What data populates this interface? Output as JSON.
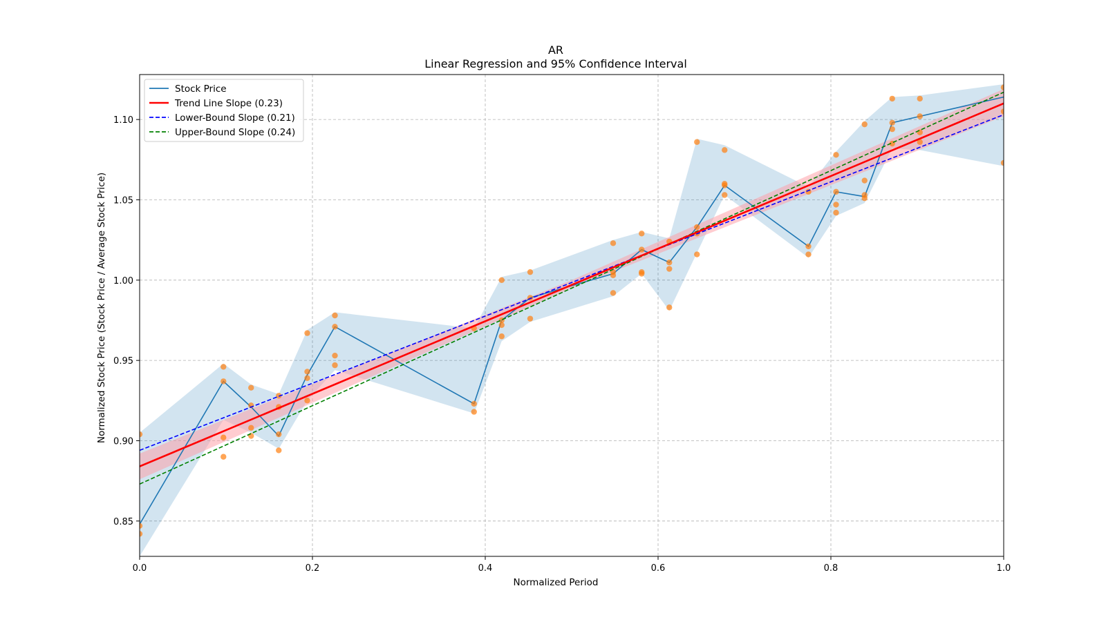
{
  "chart_data": {
    "type": "line",
    "title": "AR",
    "subtitle": "Linear Regression and 95% Confidence Interval",
    "xlabel": "Normalized Period",
    "ylabel": "Normalized Stock Price (Stock Price / Average Stock Price)",
    "xlim": [
      0.0,
      1.0
    ],
    "ylim": [
      0.828,
      1.128
    ],
    "xticks": [
      0.0,
      0.2,
      0.4,
      0.6,
      0.8,
      1.0
    ],
    "xtick_labels": [
      "0.0",
      "0.2",
      "0.4",
      "0.6",
      "0.8",
      "1.0"
    ],
    "yticks": [
      0.85,
      0.9,
      0.95,
      1.0,
      1.05,
      1.1
    ],
    "ytick_labels": [
      "0.85",
      "0.90",
      "0.95",
      "1.00",
      "1.05",
      "1.10"
    ],
    "grid": true,
    "legend_position": "top-left",
    "legend": [
      {
        "label": "Stock Price",
        "color": "#1f77b4",
        "style": "solid"
      },
      {
        "label": "Trend Line Slope (0.23)",
        "color": "#ff0000",
        "style": "solid"
      },
      {
        "label": "Lower-Bound Slope (0.21)",
        "color": "#0000ff",
        "style": "dashed"
      },
      {
        "label": "Upper-Bound Slope (0.24)",
        "color": "#008000",
        "style": "dashed"
      }
    ],
    "colors": {
      "stock": "#1f77b4",
      "stock_band": "#1f77b4",
      "scatter": "#ff7f0e",
      "trend": "#ff0000",
      "trend_band": "#ff9aa2",
      "lower": "#0000ff",
      "upper": "#008000",
      "grid": "#b0b0b0"
    },
    "stock_price": {
      "x": [
        0.0,
        0.097,
        0.129,
        0.161,
        0.194,
        0.226,
        0.387,
        0.419,
        0.452,
        0.548,
        0.581,
        0.613,
        0.645,
        0.677,
        0.774,
        0.806,
        0.839,
        0.871,
        0.903,
        1.0
      ],
      "y": [
        0.848,
        0.937,
        0.921,
        0.903,
        0.941,
        0.971,
        0.923,
        0.975,
        0.989,
        1.004,
        1.019,
        1.011,
        1.033,
        1.059,
        1.021,
        1.055,
        1.052,
        1.098,
        1.102,
        1.114
      ],
      "band_lower": [
        0.828,
        0.913,
        0.905,
        0.895,
        0.925,
        0.944,
        0.917,
        0.962,
        0.974,
        0.99,
        1.004,
        0.981,
        1.017,
        1.053,
        1.014,
        1.04,
        1.048,
        1.082,
        1.081,
        1.071
      ],
      "band_upper": [
        0.905,
        0.948,
        0.935,
        0.929,
        0.969,
        0.98,
        0.97,
        1.002,
        1.006,
        1.025,
        1.03,
        1.026,
        1.088,
        1.084,
        1.058,
        1.08,
        1.099,
        1.114,
        1.115,
        1.122
      ]
    },
    "scatter_points": {
      "x": [
        0.0,
        0.0,
        0.0,
        0.097,
        0.097,
        0.097,
        0.097,
        0.129,
        0.129,
        0.129,
        0.129,
        0.161,
        0.161,
        0.161,
        0.161,
        0.194,
        0.194,
        0.194,
        0.194,
        0.226,
        0.226,
        0.226,
        0.226,
        0.387,
        0.387,
        0.387,
        0.419,
        0.419,
        0.419,
        0.419,
        0.452,
        0.452,
        0.452,
        0.548,
        0.548,
        0.548,
        0.548,
        0.581,
        0.581,
        0.581,
        0.581,
        0.613,
        0.613,
        0.613,
        0.613,
        0.645,
        0.645,
        0.645,
        0.645,
        0.677,
        0.677,
        0.677,
        0.677,
        0.774,
        0.774,
        0.774,
        0.806,
        0.806,
        0.806,
        0.806,
        0.839,
        0.839,
        0.839,
        0.839,
        0.871,
        0.871,
        0.871,
        0.871,
        0.903,
        0.903,
        0.903,
        0.903,
        1.0,
        1.0,
        1.0
      ],
      "y": [
        0.904,
        0.847,
        0.842,
        0.946,
        0.937,
        0.902,
        0.89,
        0.933,
        0.922,
        0.908,
        0.903,
        0.928,
        0.921,
        0.904,
        0.894,
        0.967,
        0.943,
        0.939,
        0.925,
        0.978,
        0.971,
        0.953,
        0.947,
        0.923,
        0.918,
        0.97,
        1.0,
        0.975,
        0.972,
        0.965,
        1.005,
        0.989,
        0.976,
        1.023,
        1.005,
        1.003,
        0.992,
        1.029,
        1.019,
        1.005,
        1.004,
        1.024,
        1.011,
        1.007,
        0.983,
        1.086,
        1.033,
        1.029,
        1.016,
        1.081,
        1.06,
        1.059,
        1.053,
        1.055,
        1.021,
        1.016,
        1.078,
        1.055,
        1.047,
        1.042,
        1.097,
        1.062,
        1.053,
        1.051,
        1.113,
        1.098,
        1.094,
        1.085,
        1.113,
        1.102,
        1.092,
        1.086,
        1.12,
        1.105,
        1.073
      ]
    },
    "trend_line": {
      "x": [
        0.0,
        1.0
      ],
      "y": [
        0.884,
        1.11
      ]
    },
    "trend_band": {
      "x": [
        0.0,
        0.5,
        1.0
      ],
      "lower": [
        0.876,
        0.995,
        1.102
      ],
      "upper": [
        0.892,
        1.0,
        1.119
      ]
    },
    "lower_bound_line": {
      "x": [
        0.0,
        1.0
      ],
      "y": [
        0.894,
        1.103
      ]
    },
    "upper_bound_line": {
      "x": [
        0.0,
        1.0
      ],
      "y": [
        0.873,
        1.117
      ]
    }
  }
}
